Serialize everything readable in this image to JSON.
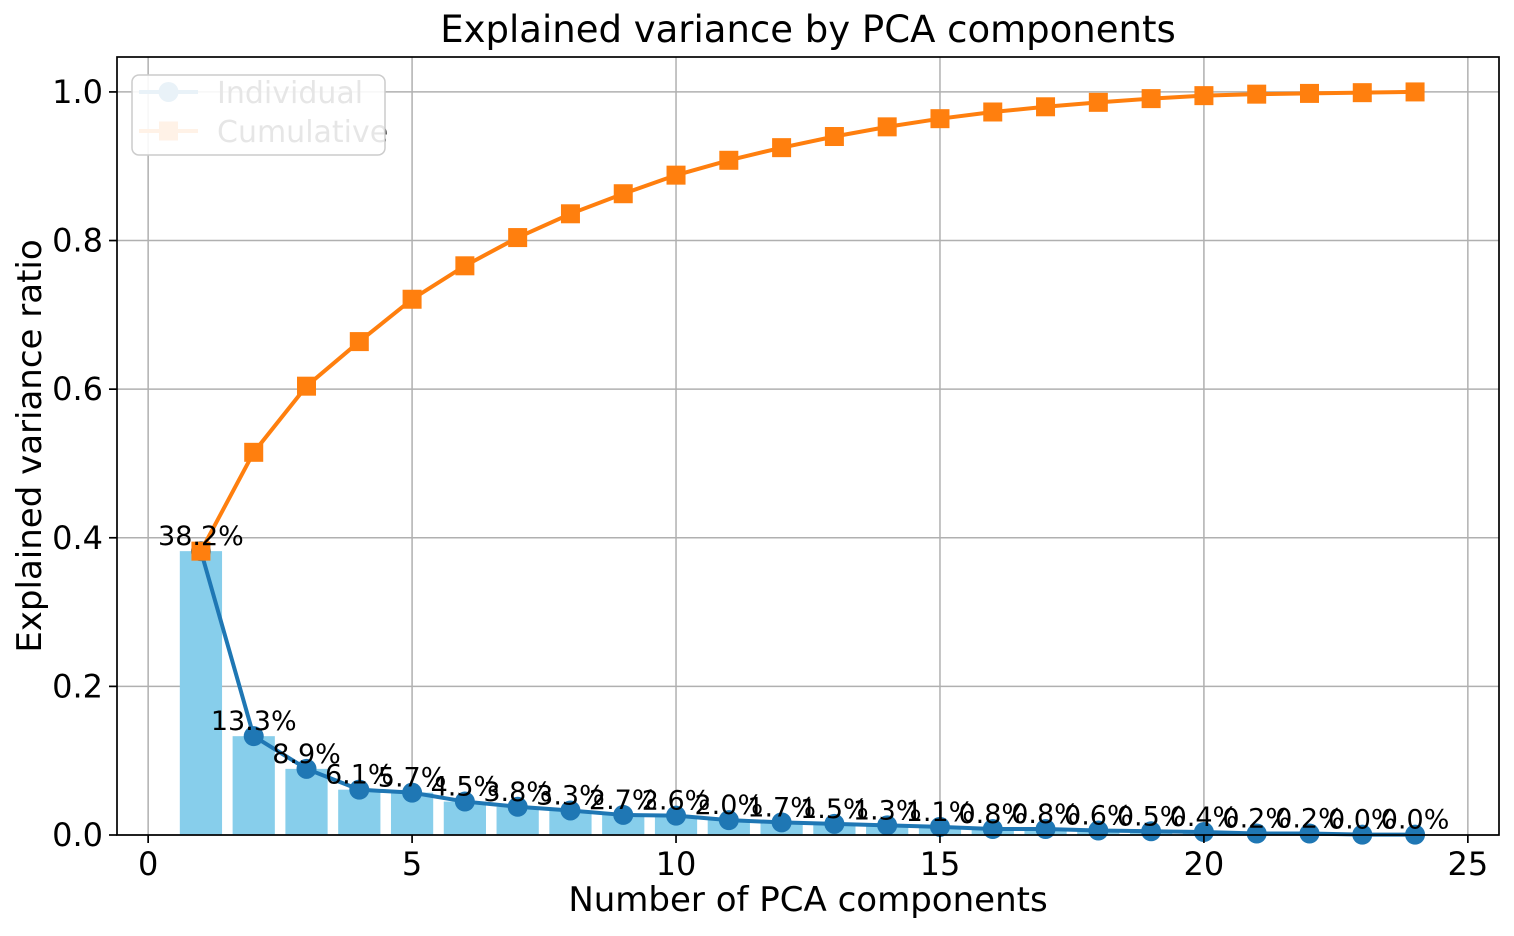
{
  "chart_data": {
    "type": "bar+line",
    "title": "Explained variance by PCA components",
    "xlabel": "Number of PCA components",
    "ylabel": "Explained variance ratio",
    "x": [
      1,
      2,
      3,
      4,
      5,
      6,
      7,
      8,
      9,
      10,
      11,
      12,
      13,
      14,
      15,
      16,
      17,
      18,
      19,
      20,
      21,
      22,
      23,
      24
    ],
    "series": [
      {
        "name": "Individual",
        "type": "bar+line",
        "marker": "circle",
        "line_color": "#1f77b4",
        "bar_color": "#87ceeb",
        "values": [
          0.382,
          0.133,
          0.089,
          0.061,
          0.057,
          0.045,
          0.038,
          0.033,
          0.027,
          0.026,
          0.02,
          0.017,
          0.015,
          0.013,
          0.011,
          0.008,
          0.008,
          0.006,
          0.005,
          0.004,
          0.002,
          0.002,
          0.0005,
          0.0005
        ],
        "point_labels": [
          "38.2%",
          "13.3%",
          "8.9%",
          "6.1%",
          "5.7%",
          "4.5%",
          "3.8%",
          "3.3%",
          "2.7%",
          "2.6%",
          "2.0%",
          "1.7%",
          "1.5%",
          "1.3%",
          "1.1%",
          "0.8%",
          "0.8%",
          "0.6%",
          "0.5%",
          "0.4%",
          "0.2%",
          "0.2%",
          "0.0%",
          "0.0%"
        ]
      },
      {
        "name": "Cumulative",
        "type": "line",
        "marker": "square",
        "line_color": "#ff7f0e",
        "values": [
          0.382,
          0.515,
          0.604,
          0.664,
          0.721,
          0.766,
          0.804,
          0.836,
          0.863,
          0.888,
          0.908,
          0.925,
          0.94,
          0.953,
          0.964,
          0.973,
          0.98,
          0.986,
          0.991,
          0.995,
          0.997,
          0.998,
          0.999,
          1.0
        ]
      }
    ],
    "xticks": [
      "0",
      "5",
      "10",
      "15",
      "20",
      "25"
    ],
    "yticks": [
      "0.0",
      "0.2",
      "0.4",
      "0.6",
      "0.8",
      "1.0"
    ],
    "xlim": [
      -0.59,
      25.59
    ],
    "ylim": [
      0,
      1.047
    ],
    "bar_width": 0.8,
    "grid": true,
    "grid_color": "#b0b0b0",
    "axis_color": "#000000",
    "text_color": "#000000",
    "legend": {
      "position": "upper left",
      "entries": [
        "Individual",
        "Cumulative"
      ],
      "border_color": "#cccccc",
      "background": "#ffffff"
    }
  }
}
